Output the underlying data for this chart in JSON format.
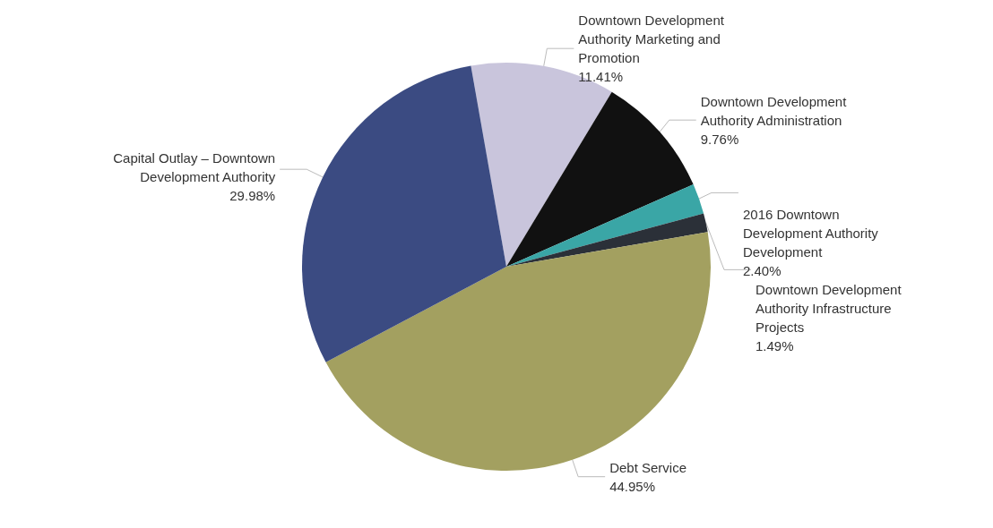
{
  "chart_data": {
    "type": "pie",
    "categories": [
      "Downtown Development Authority Marketing and Promotion",
      "Downtown Development Authority Administration",
      "2016 Downtown Development Authority Development",
      "Downtown Development Authority Infrastructure Projects",
      "Debt Service",
      "Capital Outlay – Downtown Development Authority"
    ],
    "values": [
      11.41,
      9.76,
      2.4,
      1.49,
      44.95,
      29.98
    ],
    "value_labels": [
      "11.41%",
      "9.76%",
      "2.40%",
      "1.49%",
      "44.95%",
      "29.98%"
    ],
    "colors": [
      "#c9c5dc",
      "#111111",
      "#3aa6a6",
      "#2b3038",
      "#a3a060",
      "#3b4b82"
    ],
    "legend": false
  }
}
